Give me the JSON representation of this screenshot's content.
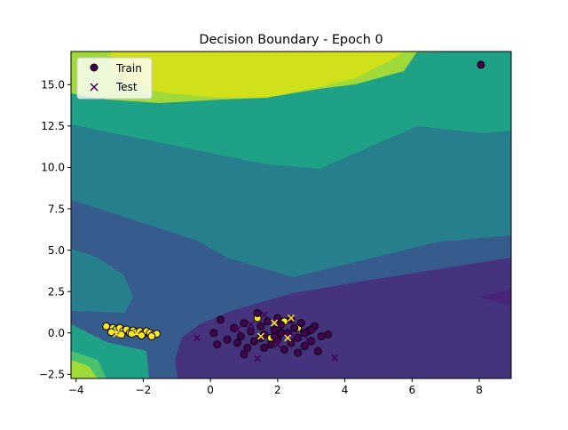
{
  "chart_data": {
    "type": "scatter",
    "title": "Decision Boundary - Epoch 0",
    "xlabel": "",
    "ylabel": "",
    "xlim": [
      -4.15,
      8.95
    ],
    "ylim": [
      -2.75,
      17.0
    ],
    "xticks": [
      -4,
      -2,
      0,
      2,
      4,
      6,
      8
    ],
    "yticks": [
      -2.5,
      0.0,
      2.5,
      5.0,
      7.5,
      10.0,
      12.5,
      15.0
    ],
    "ytick_labels": [
      "−2.5",
      "0.0",
      "2.5",
      "5.0",
      "7.5",
      "10.0",
      "12.5",
      "15.0"
    ],
    "xtick_labels": [
      "−4",
      "−2",
      "0",
      "2",
      "4",
      "6",
      "8"
    ],
    "legend": {
      "placement": "upper-left",
      "entries": [
        {
          "label": "Train",
          "marker": "circle"
        },
        {
          "label": "Test",
          "marker": "x"
        }
      ]
    },
    "contour_colors": [
      "#46337e",
      "#365c8d",
      "#277f8e",
      "#1fa187",
      "#4ac16d",
      "#a0da39",
      "#d0e11c"
    ],
    "class_colors": {
      "class0": "#440154",
      "class1": "#fde725"
    },
    "series": [
      {
        "name": "Train",
        "marker": "circle",
        "points": [
          {
            "x": 8.05,
            "y": 16.2,
            "class": 0
          },
          {
            "x": -3.1,
            "y": 0.4,
            "class": 1
          },
          {
            "x": -2.9,
            "y": 0.3,
            "class": 1
          },
          {
            "x": -2.8,
            "y": 0.2,
            "class": 1
          },
          {
            "x": -2.7,
            "y": 0.3,
            "class": 1
          },
          {
            "x": -2.6,
            "y": 0.1,
            "class": 1
          },
          {
            "x": -2.5,
            "y": 0.2,
            "class": 1
          },
          {
            "x": -2.4,
            "y": 0.0,
            "class": 1
          },
          {
            "x": -2.3,
            "y": 0.15,
            "class": 1
          },
          {
            "x": -2.2,
            "y": 0.05,
            "class": 1
          },
          {
            "x": -2.1,
            "y": 0.1,
            "class": 1
          },
          {
            "x": -2.0,
            "y": -0.05,
            "class": 1
          },
          {
            "x": -1.9,
            "y": 0.1,
            "class": 1
          },
          {
            "x": -1.8,
            "y": 0.0,
            "class": 1
          },
          {
            "x": -1.7,
            "y": -0.1,
            "class": 1
          },
          {
            "x": -1.6,
            "y": -0.05,
            "class": 1
          },
          {
            "x": -2.95,
            "y": 0.05,
            "class": 1
          },
          {
            "x": -2.65,
            "y": -0.1,
            "class": 1
          },
          {
            "x": -2.35,
            "y": -0.05,
            "class": 1
          },
          {
            "x": -2.05,
            "y": -0.15,
            "class": 1
          },
          {
            "x": -1.75,
            "y": -0.2,
            "class": 1
          },
          {
            "x": 1.4,
            "y": 0.9,
            "class": 1
          },
          {
            "x": 2.2,
            "y": 0.7,
            "class": 1
          },
          {
            "x": 1.8,
            "y": -0.3,
            "class": 1
          },
          {
            "x": 2.6,
            "y": 0.3,
            "class": 1
          },
          {
            "x": 0.1,
            "y": 0.0,
            "class": 0
          },
          {
            "x": 0.3,
            "y": 0.8,
            "class": 0
          },
          {
            "x": 0.5,
            "y": -0.4,
            "class": 0
          },
          {
            "x": 0.2,
            "y": -0.7,
            "class": 0
          },
          {
            "x": 0.7,
            "y": 0.3,
            "class": 0
          },
          {
            "x": 0.9,
            "y": -0.2,
            "class": 0
          },
          {
            "x": 1.0,
            "y": 0.6,
            "class": 0
          },
          {
            "x": 1.1,
            "y": -0.9,
            "class": 0
          },
          {
            "x": 1.2,
            "y": 0.1,
            "class": 0
          },
          {
            "x": 1.3,
            "y": -0.5,
            "class": 0
          },
          {
            "x": 1.5,
            "y": 0.4,
            "class": 0
          },
          {
            "x": 1.6,
            "y": -0.1,
            "class": 0
          },
          {
            "x": 1.7,
            "y": 0.7,
            "class": 0
          },
          {
            "x": 1.8,
            "y": -0.7,
            "class": 0
          },
          {
            "x": 1.9,
            "y": 0.2,
            "class": 0
          },
          {
            "x": 2.0,
            "y": -0.4,
            "class": 0
          },
          {
            "x": 2.1,
            "y": 0.5,
            "class": 0
          },
          {
            "x": 2.2,
            "y": -1.0,
            "class": 0
          },
          {
            "x": 2.3,
            "y": 0.0,
            "class": 0
          },
          {
            "x": 2.4,
            "y": -0.6,
            "class": 0
          },
          {
            "x": 2.5,
            "y": 0.3,
            "class": 0
          },
          {
            "x": 2.6,
            "y": -0.3,
            "class": 0
          },
          {
            "x": 2.7,
            "y": 0.6,
            "class": 0
          },
          {
            "x": 2.8,
            "y": -0.8,
            "class": 0
          },
          {
            "x": 2.9,
            "y": 0.1,
            "class": 0
          },
          {
            "x": 3.0,
            "y": -0.5,
            "class": 0
          },
          {
            "x": 3.1,
            "y": 0.4,
            "class": 0
          },
          {
            "x": 3.3,
            "y": -0.2,
            "class": 0
          },
          {
            "x": 3.5,
            "y": -0.1,
            "class": 0
          },
          {
            "x": 3.2,
            "y": -1.1,
            "class": 0
          },
          {
            "x": 1.4,
            "y": 1.2,
            "class": 0
          },
          {
            "x": 2.0,
            "y": 0.9,
            "class": 0
          },
          {
            "x": 1.0,
            "y": -1.3,
            "class": 0
          },
          {
            "x": 2.6,
            "y": -1.2,
            "class": 0
          },
          {
            "x": 1.6,
            "y": -0.9,
            "class": 0
          },
          {
            "x": 2.4,
            "y": 0.8,
            "class": 0
          },
          {
            "x": 0.8,
            "y": -0.6,
            "class": 0
          },
          {
            "x": 1.9,
            "y": -0.2,
            "class": 0
          },
          {
            "x": 2.1,
            "y": 0.0,
            "class": 0
          },
          {
            "x": 1.5,
            "y": -0.3,
            "class": 0
          },
          {
            "x": 3.0,
            "y": 0.2,
            "class": 0
          },
          {
            "x": 2.8,
            "y": 0.0,
            "class": 0
          }
        ]
      },
      {
        "name": "Test",
        "marker": "x",
        "points": [
          {
            "x": -0.4,
            "y": -0.3,
            "class": 0
          },
          {
            "x": 1.0,
            "y": -1.2,
            "class": 0
          },
          {
            "x": 1.4,
            "y": -1.55,
            "class": 0
          },
          {
            "x": 3.7,
            "y": -1.5,
            "class": 0
          },
          {
            "x": 1.2,
            "y": 0.5,
            "class": 0
          },
          {
            "x": 1.6,
            "y": 1.1,
            "class": 0
          },
          {
            "x": 2.0,
            "y": -0.7,
            "class": 0
          },
          {
            "x": 2.5,
            "y": -0.2,
            "class": 0
          },
          {
            "x": 2.9,
            "y": -0.4,
            "class": 0
          },
          {
            "x": 0.8,
            "y": 0.2,
            "class": 0
          },
          {
            "x": 1.5,
            "y": -0.2,
            "class": 1
          },
          {
            "x": 2.3,
            "y": -0.3,
            "class": 1
          },
          {
            "x": 1.9,
            "y": 0.6,
            "class": 1
          },
          {
            "x": 2.4,
            "y": 0.9,
            "class": 1
          },
          {
            "x": -2.8,
            "y": -0.05,
            "class": 1
          },
          {
            "x": -2.2,
            "y": 0.0,
            "class": 1
          }
        ]
      }
    ]
  }
}
